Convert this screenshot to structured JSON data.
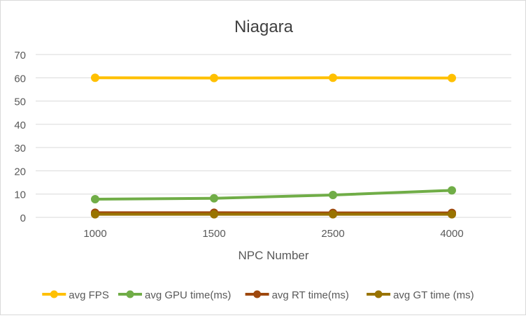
{
  "chart_data": {
    "type": "line",
    "title": "Niagara",
    "xlabel": "NPC Number",
    "ylabel": "",
    "categories": [
      "1000",
      "1500",
      "2500",
      "4000"
    ],
    "ylim": [
      0,
      70
    ],
    "yticks": [
      0,
      10,
      20,
      30,
      40,
      50,
      60,
      70
    ],
    "grid": true,
    "legend_position": "bottom",
    "series": [
      {
        "name": "avg FPS",
        "color": "#FFC000",
        "values": [
          60.0,
          59.9,
          60.0,
          59.9
        ]
      },
      {
        "name": "avg GPU time(ms)",
        "color": "#70AD47",
        "values": [
          7.8,
          8.2,
          9.6,
          11.6
        ]
      },
      {
        "name": "avg RT time(ms)",
        "color": "#9E480E",
        "values": [
          2.0,
          2.0,
          1.9,
          1.9
        ]
      },
      {
        "name": "avg GT time (ms)",
        "color": "#997300",
        "values": [
          1.3,
          1.3,
          1.3,
          1.3
        ]
      }
    ]
  }
}
